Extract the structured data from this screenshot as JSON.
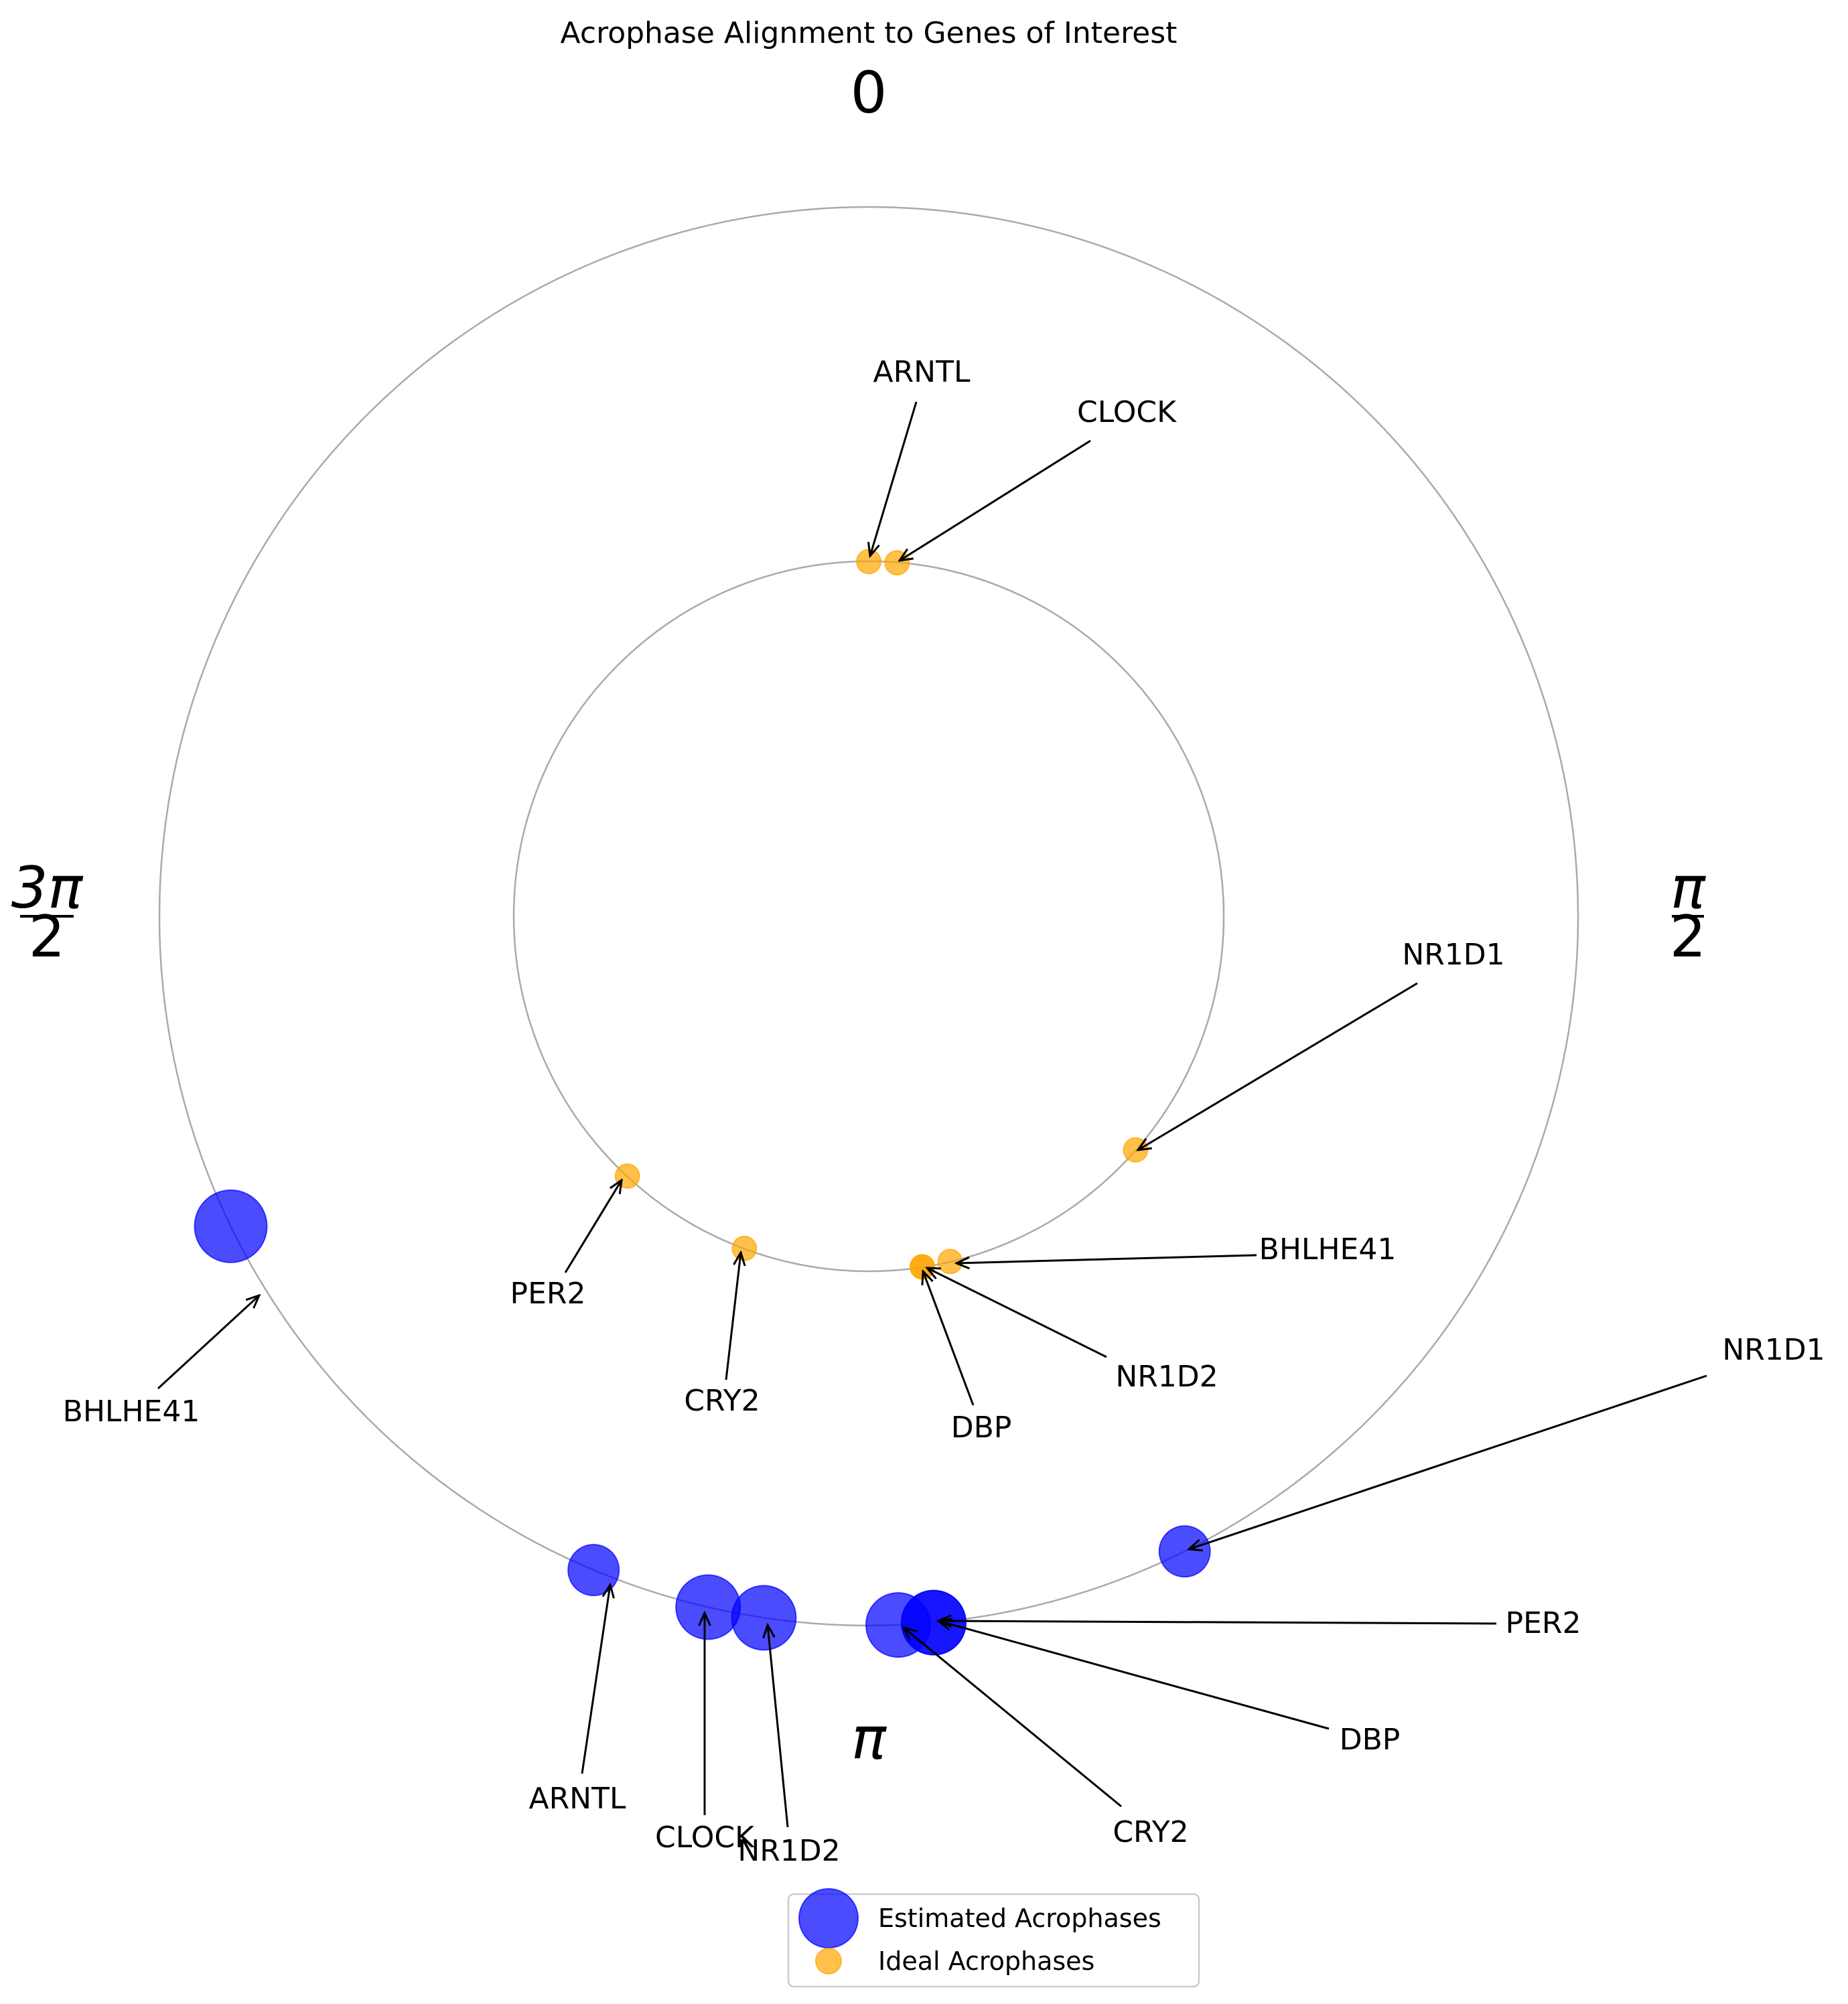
{
  "chart_data": {
    "type": "scatter",
    "subtype": "polar",
    "title": "Acrophase Alignment to Genes of Interest",
    "angle_unit": "radians",
    "direction": "clockwise",
    "zero_location": "top",
    "angle_labels": [
      {
        "angle": 0,
        "label": "0"
      },
      {
        "angle": 1.5708,
        "numerator": "π",
        "denominator": "2"
      },
      {
        "angle": 3.1416,
        "label": "π"
      },
      {
        "angle": 4.7124,
        "numerator": "3π",
        "denominator": "2"
      }
    ],
    "rings": [
      {
        "name": "Ideal Acrophases",
        "radius": 1.0
      },
      {
        "name": "Estimated Acrophases",
        "radius": 2.0
      }
    ],
    "series": [
      {
        "name": "Estimated Acrophases",
        "color": "#0000ff",
        "points": [
          {
            "gene": "ARNTL",
            "phase": 3.54,
            "radius": 2.0
          },
          {
            "gene": "CLOCK",
            "phase": 3.37,
            "radius": 2.0
          },
          {
            "gene": "NR1D2",
            "phase": 3.29,
            "radius": 2.0
          },
          {
            "gene": "CRY2",
            "phase": 3.1,
            "radius": 2.0
          },
          {
            "gene": "DBP",
            "phase": 3.05,
            "radius": 2.0
          },
          {
            "gene": "PER2",
            "phase": 3.05,
            "radius": 2.0
          },
          {
            "gene": "NR1D1",
            "phase": 2.68,
            "radius": 2.0
          },
          {
            "gene": "BHLHE41",
            "phase": 4.26,
            "radius": 2.0
          }
        ]
      },
      {
        "name": "Ideal Acrophases",
        "color": "#ffa500",
        "points": [
          {
            "gene": "ARNTL",
            "phase": 0.0,
            "radius": 1.0
          },
          {
            "gene": "CLOCK",
            "phase": 0.08,
            "radius": 1.0
          },
          {
            "gene": "NR1D1",
            "phase": 2.29,
            "radius": 1.0
          },
          {
            "gene": "BHLHE41",
            "phase": 2.91,
            "radius": 1.0
          },
          {
            "gene": "NR1D2",
            "phase": 2.99,
            "radius": 1.0
          },
          {
            "gene": "DBP",
            "phase": 2.99,
            "radius": 1.0
          },
          {
            "gene": "CRY2",
            "phase": 3.5,
            "radius": 1.0
          },
          {
            "gene": "PER2",
            "phase": 3.89,
            "radius": 1.0
          }
        ]
      }
    ],
    "legend": {
      "placement": "bottom-center",
      "entries": [
        "Estimated Acrophases",
        "Ideal Acrophases"
      ]
    }
  }
}
